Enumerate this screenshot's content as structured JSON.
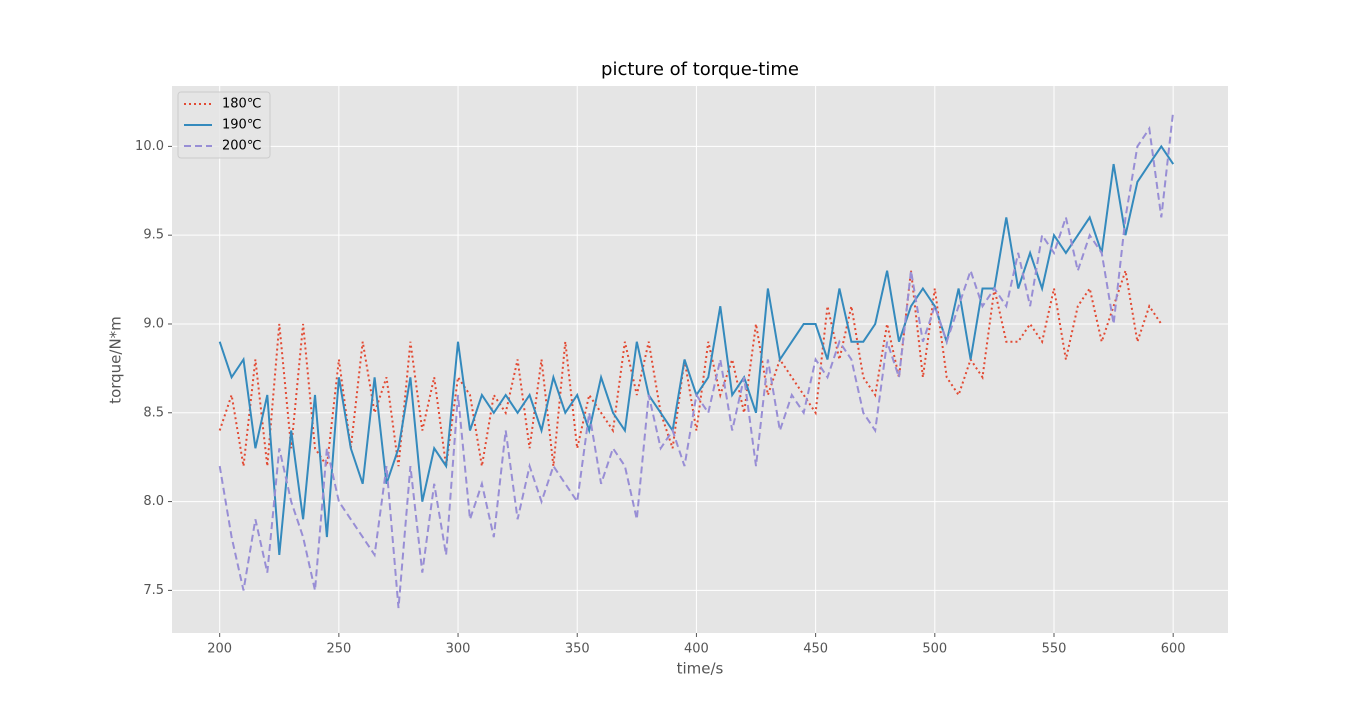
{
  "chart_data": {
    "type": "line",
    "title": "picture of torque-time",
    "x_label": "time/s",
    "y_label": "torque/N*m",
    "x": [
      200,
      205,
      210,
      215,
      220,
      225,
      230,
      235,
      240,
      245,
      250,
      255,
      260,
      265,
      270,
      275,
      280,
      285,
      290,
      295,
      300,
      305,
      310,
      315,
      320,
      325,
      330,
      335,
      340,
      345,
      350,
      355,
      360,
      365,
      370,
      375,
      380,
      385,
      390,
      395,
      400,
      405,
      410,
      415,
      420,
      425,
      430,
      435,
      440,
      445,
      450,
      455,
      460,
      465,
      470,
      475,
      480,
      485,
      490,
      495,
      500,
      505,
      510,
      515,
      520,
      525,
      530,
      535,
      540,
      545,
      550,
      555,
      560,
      565,
      570,
      575,
      580,
      585,
      590,
      595,
      600
    ],
    "series": [
      {
        "name": "180℃",
        "color": "#E24A33",
        "linestyle": "dotted",
        "values": [
          8.4,
          8.6,
          8.2,
          8.8,
          8.2,
          9.0,
          8.3,
          9.0,
          8.3,
          8.2,
          8.8,
          8.3,
          8.9,
          8.5,
          8.7,
          8.2,
          8.9,
          8.4,
          8.7,
          8.2,
          8.7,
          8.6,
          8.2,
          8.6,
          8.5,
          8.8,
          8.3,
          8.8,
          8.2,
          8.9,
          8.3,
          8.6,
          8.5,
          8.4,
          8.9,
          8.6,
          8.9,
          8.5,
          8.3,
          8.8,
          8.4,
          8.9,
          8.6,
          8.8,
          8.5,
          9.0,
          8.6,
          8.8,
          8.7,
          8.6,
          8.5,
          9.1,
          8.8,
          9.1,
          8.7,
          8.6,
          9.0,
          8.7,
          9.3,
          8.7,
          9.2,
          8.7,
          8.6,
          8.8,
          8.7,
          9.2,
          8.9,
          8.9,
          9.0,
          8.9,
          9.2,
          8.8,
          9.1,
          9.2,
          8.9,
          9.1,
          9.3,
          8.9,
          9.1,
          9.0,
          null
        ]
      },
      {
        "name": "190℃",
        "color": "#348ABD",
        "linestyle": "solid",
        "values": [
          8.9,
          8.7,
          8.8,
          8.3,
          8.6,
          7.7,
          8.4,
          7.9,
          8.6,
          7.8,
          8.7,
          8.3,
          8.1,
          8.7,
          8.1,
          8.3,
          8.7,
          8.0,
          8.3,
          8.2,
          8.9,
          8.4,
          8.6,
          8.5,
          8.6,
          8.5,
          8.6,
          8.4,
          8.7,
          8.5,
          8.6,
          8.4,
          8.7,
          8.5,
          8.4,
          8.9,
          8.6,
          8.5,
          8.4,
          8.8,
          8.6,
          8.7,
          9.1,
          8.6,
          8.7,
          8.5,
          9.2,
          8.8,
          8.9,
          9.0,
          9.0,
          8.8,
          9.2,
          8.9,
          8.9,
          9.0,
          9.3,
          8.9,
          9.1,
          9.2,
          9.1,
          8.9,
          9.2,
          8.8,
          9.2,
          9.2,
          9.6,
          9.2,
          9.4,
          9.2,
          9.5,
          9.4,
          9.5,
          9.6,
          9.4,
          9.9,
          9.5,
          9.8,
          9.9,
          10.0,
          9.9
        ]
      },
      {
        "name": "200℃",
        "color": "#988ED5",
        "linestyle": "dashed",
        "values": [
          8.2,
          7.8,
          7.5,
          7.9,
          7.6,
          8.3,
          8.0,
          7.8,
          7.5,
          8.3,
          8.0,
          7.9,
          7.8,
          7.7,
          8.2,
          7.4,
          8.2,
          7.6,
          8.1,
          7.7,
          8.6,
          7.9,
          8.1,
          7.8,
          8.4,
          7.9,
          8.2,
          8.0,
          8.2,
          8.1,
          8.0,
          8.5,
          8.1,
          8.3,
          8.2,
          7.9,
          8.6,
          8.3,
          8.4,
          8.2,
          8.6,
          8.5,
          8.8,
          8.4,
          8.7,
          8.2,
          8.8,
          8.4,
          8.6,
          8.5,
          8.8,
          8.7,
          8.9,
          8.8,
          8.5,
          8.4,
          8.9,
          8.7,
          9.3,
          8.9,
          9.1,
          8.9,
          9.1,
          9.3,
          9.1,
          9.2,
          9.1,
          9.4,
          9.1,
          9.5,
          9.4,
          9.6,
          9.3,
          9.5,
          9.4,
          9.0,
          9.6,
          10.0,
          10.1,
          9.6,
          10.2
        ]
      }
    ],
    "xlim": [
      180,
      623
    ],
    "ylim": [
      7.26,
      10.34
    ],
    "xticks": [
      200,
      250,
      300,
      350,
      400,
      450,
      500,
      550,
      600
    ],
    "yticks": [
      7.5,
      {
        "value": 8,
        "label": "8.0"
      },
      8.5,
      {
        "value": 9,
        "label": "9.0"
      },
      9.5,
      {
        "value": 10,
        "label": "10.0"
      }
    ],
    "grid": true,
    "legend": "upper left"
  }
}
